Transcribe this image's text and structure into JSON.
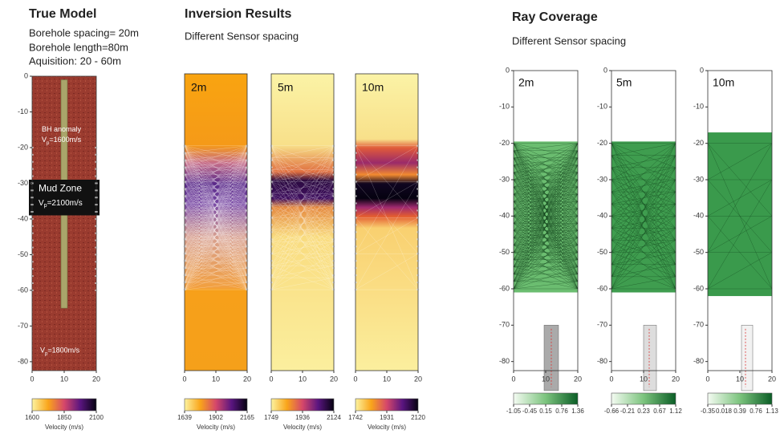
{
  "true_model": {
    "title": "True Model",
    "notes": [
      "Borehole spacing= 20m",
      "Borehole length=80m",
      "Aquisition: 20 - 60m"
    ],
    "anomaly": {
      "label": "BH anomaly",
      "v": "V",
      "sub": "p",
      "value": "=1600m/s"
    },
    "mud_zone": {
      "label": "Mud Zone",
      "v": "V",
      "sub": "p",
      "value": "=2100m/s"
    },
    "background": {
      "v": "V",
      "sub": "p",
      "value": "=1800m/s"
    },
    "plot": {
      "yticks": [
        0,
        -10,
        -20,
        -30,
        -40,
        -50,
        -60,
        -70,
        -80
      ],
      "xticks": [
        0,
        10,
        20
      ],
      "colorbar": {
        "ticks": [
          1600,
          1850,
          2100
        ],
        "label": "Velocity (m/s)"
      }
    }
  },
  "inversion": {
    "title": "Inversion Results",
    "subtitle": "Different Sensor spacing",
    "panels": [
      {
        "label": "2m",
        "xticks": [
          0,
          10,
          20
        ],
        "colorbar": {
          "ticks": [
            1639,
            1902,
            2165
          ],
          "label": "Velocity (m/s)"
        }
      },
      {
        "label": "5m",
        "xticks": [
          0,
          10,
          20
        ],
        "colorbar": {
          "ticks": [
            1749,
            1936,
            2124
          ],
          "label": "Velocity (m/s)"
        }
      },
      {
        "label": "10m",
        "xticks": [
          0,
          10,
          20
        ],
        "colorbar": {
          "ticks": [
            1742,
            1931,
            2120
          ],
          "label": "Velocity (m/s)"
        }
      }
    ]
  },
  "ray_coverage": {
    "title": "Ray Coverage",
    "subtitle": "Different Sensor spacing",
    "panels": [
      {
        "label": "2m",
        "yticks": [
          0,
          -10,
          -20,
          -30,
          -40,
          -50,
          -60,
          -70,
          -80
        ],
        "xticks": [
          0,
          10,
          20
        ],
        "colorbar": {
          "ticks": [
            -1.05,
            -0.45,
            0.15,
            0.76,
            1.36
          ]
        }
      },
      {
        "label": "5m",
        "yticks": [
          0,
          -10,
          -20,
          -30,
          -40,
          -50,
          -60,
          -70,
          -80
        ],
        "xticks": [
          0,
          10,
          20
        ],
        "colorbar": {
          "ticks": [
            -0.66,
            -0.21,
            0.23,
            0.67,
            1.12
          ]
        }
      },
      {
        "label": "10m",
        "yticks": [
          0,
          -10,
          -20,
          -30,
          -40,
          -50,
          -60,
          -70,
          -80
        ],
        "xticks": [
          0,
          10,
          20
        ],
        "colorbar": {
          "ticks": [
            -0.35,
            0.018,
            0.39,
            0.76,
            1.13
          ]
        }
      }
    ]
  }
}
